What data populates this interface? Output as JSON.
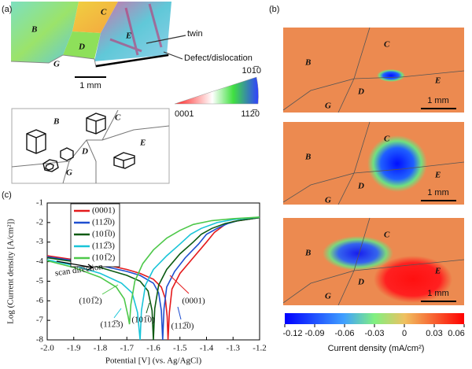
{
  "panel_labels": [
    "(a)",
    "(b)",
    "(c)"
  ],
  "ebsd": {
    "grains": [
      "B",
      "C",
      "D",
      "E",
      "G"
    ],
    "annotations": [
      "twin",
      "Defect/dislocation"
    ],
    "scale_bar": "1 mm",
    "ipf_labels": [
      "0001",
      "112̅0",
      "101̅0"
    ]
  },
  "sketch": {
    "grains": [
      "B",
      "C",
      "D",
      "E",
      "G"
    ]
  },
  "maps": [
    {
      "grains": [
        "B",
        "C",
        "D",
        "E",
        "G"
      ],
      "scale_bar": "1 mm"
    },
    {
      "grains": [
        "B",
        "C",
        "D",
        "E",
        "G"
      ],
      "scale_bar": "1 mm"
    },
    {
      "grains": [
        "B",
        "C",
        "D",
        "E",
        "G"
      ],
      "scale_bar": "1 mm"
    }
  ],
  "colorbar": {
    "label": "Current density (mA/cm²)",
    "lim": [
      -0.12,
      0.06
    ],
    "ticks": [
      -0.12,
      -0.09,
      -0.06,
      -0.03,
      0,
      0.03,
      0.06
    ]
  },
  "chart_data": {
    "type": "line",
    "xlabel": "Potential [V] (vs. Ag/AgCl)",
    "ylabel": "Log (Current density [A/cm²])",
    "xlim": [
      -2.0,
      -1.2
    ],
    "ylim": [
      -8,
      -1
    ],
    "xticks": [
      {
        "value": -2.0,
        "label": "-2.0"
      },
      -1.9,
      -1.8,
      -1.7,
      -1.6,
      -1.5,
      -1.4,
      -1.3,
      -1.2
    ],
    "yticks": [
      -8,
      -7,
      -6,
      -5,
      -4,
      -3,
      -2,
      -1
    ],
    "legend": "upper left",
    "series": [
      {
        "name": "(0001)",
        "color": "#e41a1c",
        "x": [
          -2.0,
          -1.9,
          -1.8,
          -1.7,
          -1.65,
          -1.6,
          -1.57,
          -1.555,
          -1.548,
          -1.545,
          -1.54,
          -1.53,
          -1.5,
          -1.45,
          -1.4,
          -1.37,
          -1.33,
          -1.3,
          -1.25,
          -1.2
        ],
        "values": [
          -3.7,
          -3.9,
          -4.1,
          -4.4,
          -4.6,
          -4.9,
          -5.3,
          -5.9,
          -6.8,
          -8,
          -6.6,
          -5.4,
          -4.6,
          -3.8,
          -3.0,
          -2.5,
          -2.1,
          -1.95,
          -1.85,
          -1.75
        ]
      },
      {
        "name": "(112̅0)",
        "color": "#1f4fd0",
        "x": [
          -2.0,
          -1.9,
          -1.8,
          -1.7,
          -1.65,
          -1.6,
          -1.58,
          -1.57,
          -1.565,
          -1.56,
          -1.55,
          -1.52,
          -1.48,
          -1.43,
          -1.4,
          -1.36,
          -1.32,
          -1.28,
          -1.2
        ],
        "values": [
          -3.75,
          -3.95,
          -4.2,
          -4.5,
          -4.7,
          -5.1,
          -5.6,
          -6.5,
          -8,
          -6.4,
          -5.3,
          -4.5,
          -3.8,
          -3.1,
          -2.6,
          -2.3,
          -2.05,
          -1.9,
          -1.75
        ]
      },
      {
        "name": "(101̅0)",
        "color": "#0b5a12",
        "x": [
          -2.0,
          -1.9,
          -1.8,
          -1.7,
          -1.65,
          -1.62,
          -1.605,
          -1.6,
          -1.595,
          -1.58,
          -1.55,
          -1.5,
          -1.45,
          -1.42,
          -1.38,
          -1.33,
          -1.28,
          -1.2
        ],
        "values": [
          -3.8,
          -4.0,
          -4.3,
          -4.7,
          -5.0,
          -5.5,
          -6.5,
          -8,
          -6.4,
          -5.2,
          -4.4,
          -3.6,
          -3.0,
          -2.6,
          -2.3,
          -2.05,
          -1.9,
          -1.75
        ]
      },
      {
        "name": "(112̅3)",
        "color": "#19c4d8",
        "x": [
          -2.0,
          -1.9,
          -1.8,
          -1.72,
          -1.68,
          -1.66,
          -1.65,
          -1.645,
          -1.63,
          -1.6,
          -1.55,
          -1.5,
          -1.46,
          -1.42,
          -1.36,
          -1.3,
          -1.2
        ],
        "values": [
          -3.9,
          -4.2,
          -4.6,
          -5.1,
          -5.6,
          -6.6,
          -8,
          -6.5,
          -5.2,
          -4.4,
          -3.7,
          -3.1,
          -2.6,
          -2.3,
          -2.0,
          -1.85,
          -1.72
        ]
      },
      {
        "name": "(101̅2)",
        "color": "#4ec84a",
        "x": [
          -2.0,
          -1.9,
          -1.8,
          -1.74,
          -1.71,
          -1.695,
          -1.69,
          -1.685,
          -1.67,
          -1.64,
          -1.6,
          -1.55,
          -1.5,
          -1.45,
          -1.38,
          -1.3,
          -1.2
        ],
        "values": [
          -3.95,
          -4.3,
          -4.8,
          -5.3,
          -5.9,
          -6.8,
          -7.2,
          -6.2,
          -5.0,
          -4.1,
          -3.4,
          -2.8,
          -2.4,
          -2.1,
          -1.9,
          -1.8,
          -1.72
        ]
      }
    ],
    "annotations": [
      {
        "text": "scan direction",
        "color": "#111111"
      },
      {
        "text": "(0001)",
        "color": "#e41a1c"
      },
      {
        "text": "(112̅0)",
        "color": "#1f4fd0"
      },
      {
        "text": "(101̅0)",
        "color": "#0b5a12"
      },
      {
        "text": "(112̅3)",
        "color": "#19c4d8"
      },
      {
        "text": "(101̅2)",
        "color": "#4ec84a"
      }
    ]
  }
}
